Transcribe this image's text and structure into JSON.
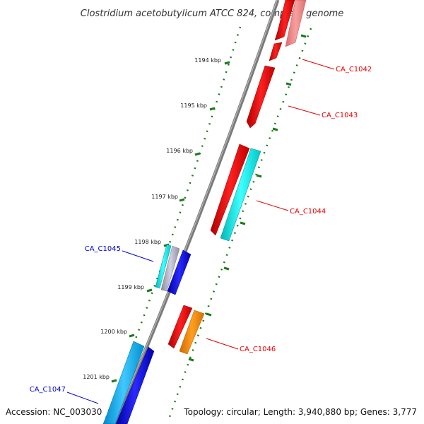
{
  "title": "Clostridium acetobutylicum ATCC 824, complete genome",
  "accession": "Accession: NC_003030",
  "topology": "Topology: circular; Length: 3,940,880 bp; Genes: 3,777",
  "ticks": [
    "1194 kbp",
    "1195 kbp",
    "1196 kbp",
    "1197 kbp",
    "1198 kbp",
    "1199 kbp",
    "1200 kbp",
    "1201 kbp"
  ],
  "genes": [
    {
      "label": "CA_C1042",
      "color": "#e00000"
    },
    {
      "label": "CA_C1043",
      "color": "#e00000"
    },
    {
      "label": "CA_C1044",
      "color": "#e00000"
    },
    {
      "label": "CA_C1045",
      "color": "#0000cc"
    },
    {
      "label": "CA_C1046",
      "color": "#e00000"
    },
    {
      "label": "CA_C1047",
      "color": "#0000cc"
    }
  ],
  "colors": {
    "backbone": "#808080",
    "tick": "#1a7a1a",
    "forward": "#ff0000",
    "forward_light": "#f08080",
    "cyan": "#00e5e5",
    "reverse": "#0000ee",
    "orange": "#ff8c00",
    "sky": "#00aaee"
  }
}
